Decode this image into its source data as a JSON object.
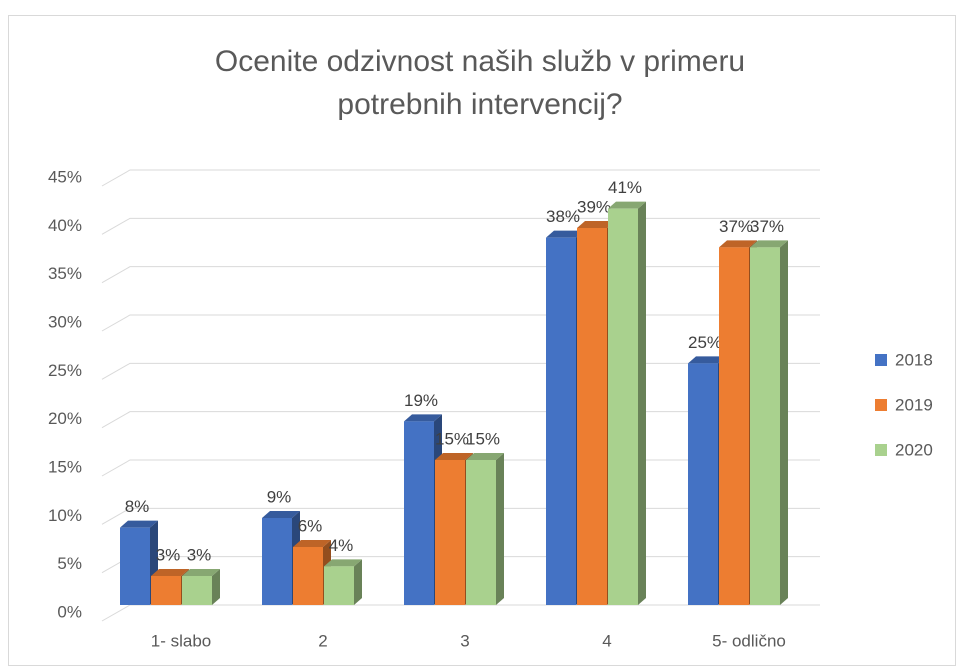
{
  "chart_data": {
    "type": "bar3d",
    "title": "Ocenite odzivnost naših služb v primeru potrebnih intervencij?",
    "categories": [
      "1- slabo",
      "2",
      "3",
      "4",
      "5- odlično"
    ],
    "series": [
      {
        "name": "2018",
        "color": "#4472c4",
        "values": [
          8,
          9,
          19,
          38,
          25
        ],
        "value_labels": [
          "8%",
          "9%",
          "19%",
          "38%",
          "25%"
        ]
      },
      {
        "name": "2019",
        "color": "#ed7d31",
        "values": [
          3,
          6,
          15,
          39,
          37
        ],
        "value_labels": [
          "3%",
          "6%",
          "15%",
          "39%",
          "37%"
        ]
      },
      {
        "name": "2020",
        "color": "#a9d18e",
        "values": [
          3,
          4,
          15,
          41,
          37
        ],
        "value_labels": [
          "3%",
          "4%",
          "15%",
          "41%",
          "37%"
        ]
      }
    ],
    "ylim": [
      0,
      45
    ],
    "yticks": [
      {
        "value": 0,
        "label": "0%"
      },
      {
        "value": 5,
        "label": "5%"
      },
      {
        "value": 10,
        "label": "10%"
      },
      {
        "value": 15,
        "label": "15%"
      },
      {
        "value": 20,
        "label": "20%"
      },
      {
        "value": 25,
        "label": "25%"
      },
      {
        "value": 30,
        "label": "30%"
      },
      {
        "value": 35,
        "label": "35%"
      },
      {
        "value": 40,
        "label": "40%"
      },
      {
        "value": 45,
        "label": "45%"
      }
    ],
    "grid": true,
    "legend": "right"
  }
}
